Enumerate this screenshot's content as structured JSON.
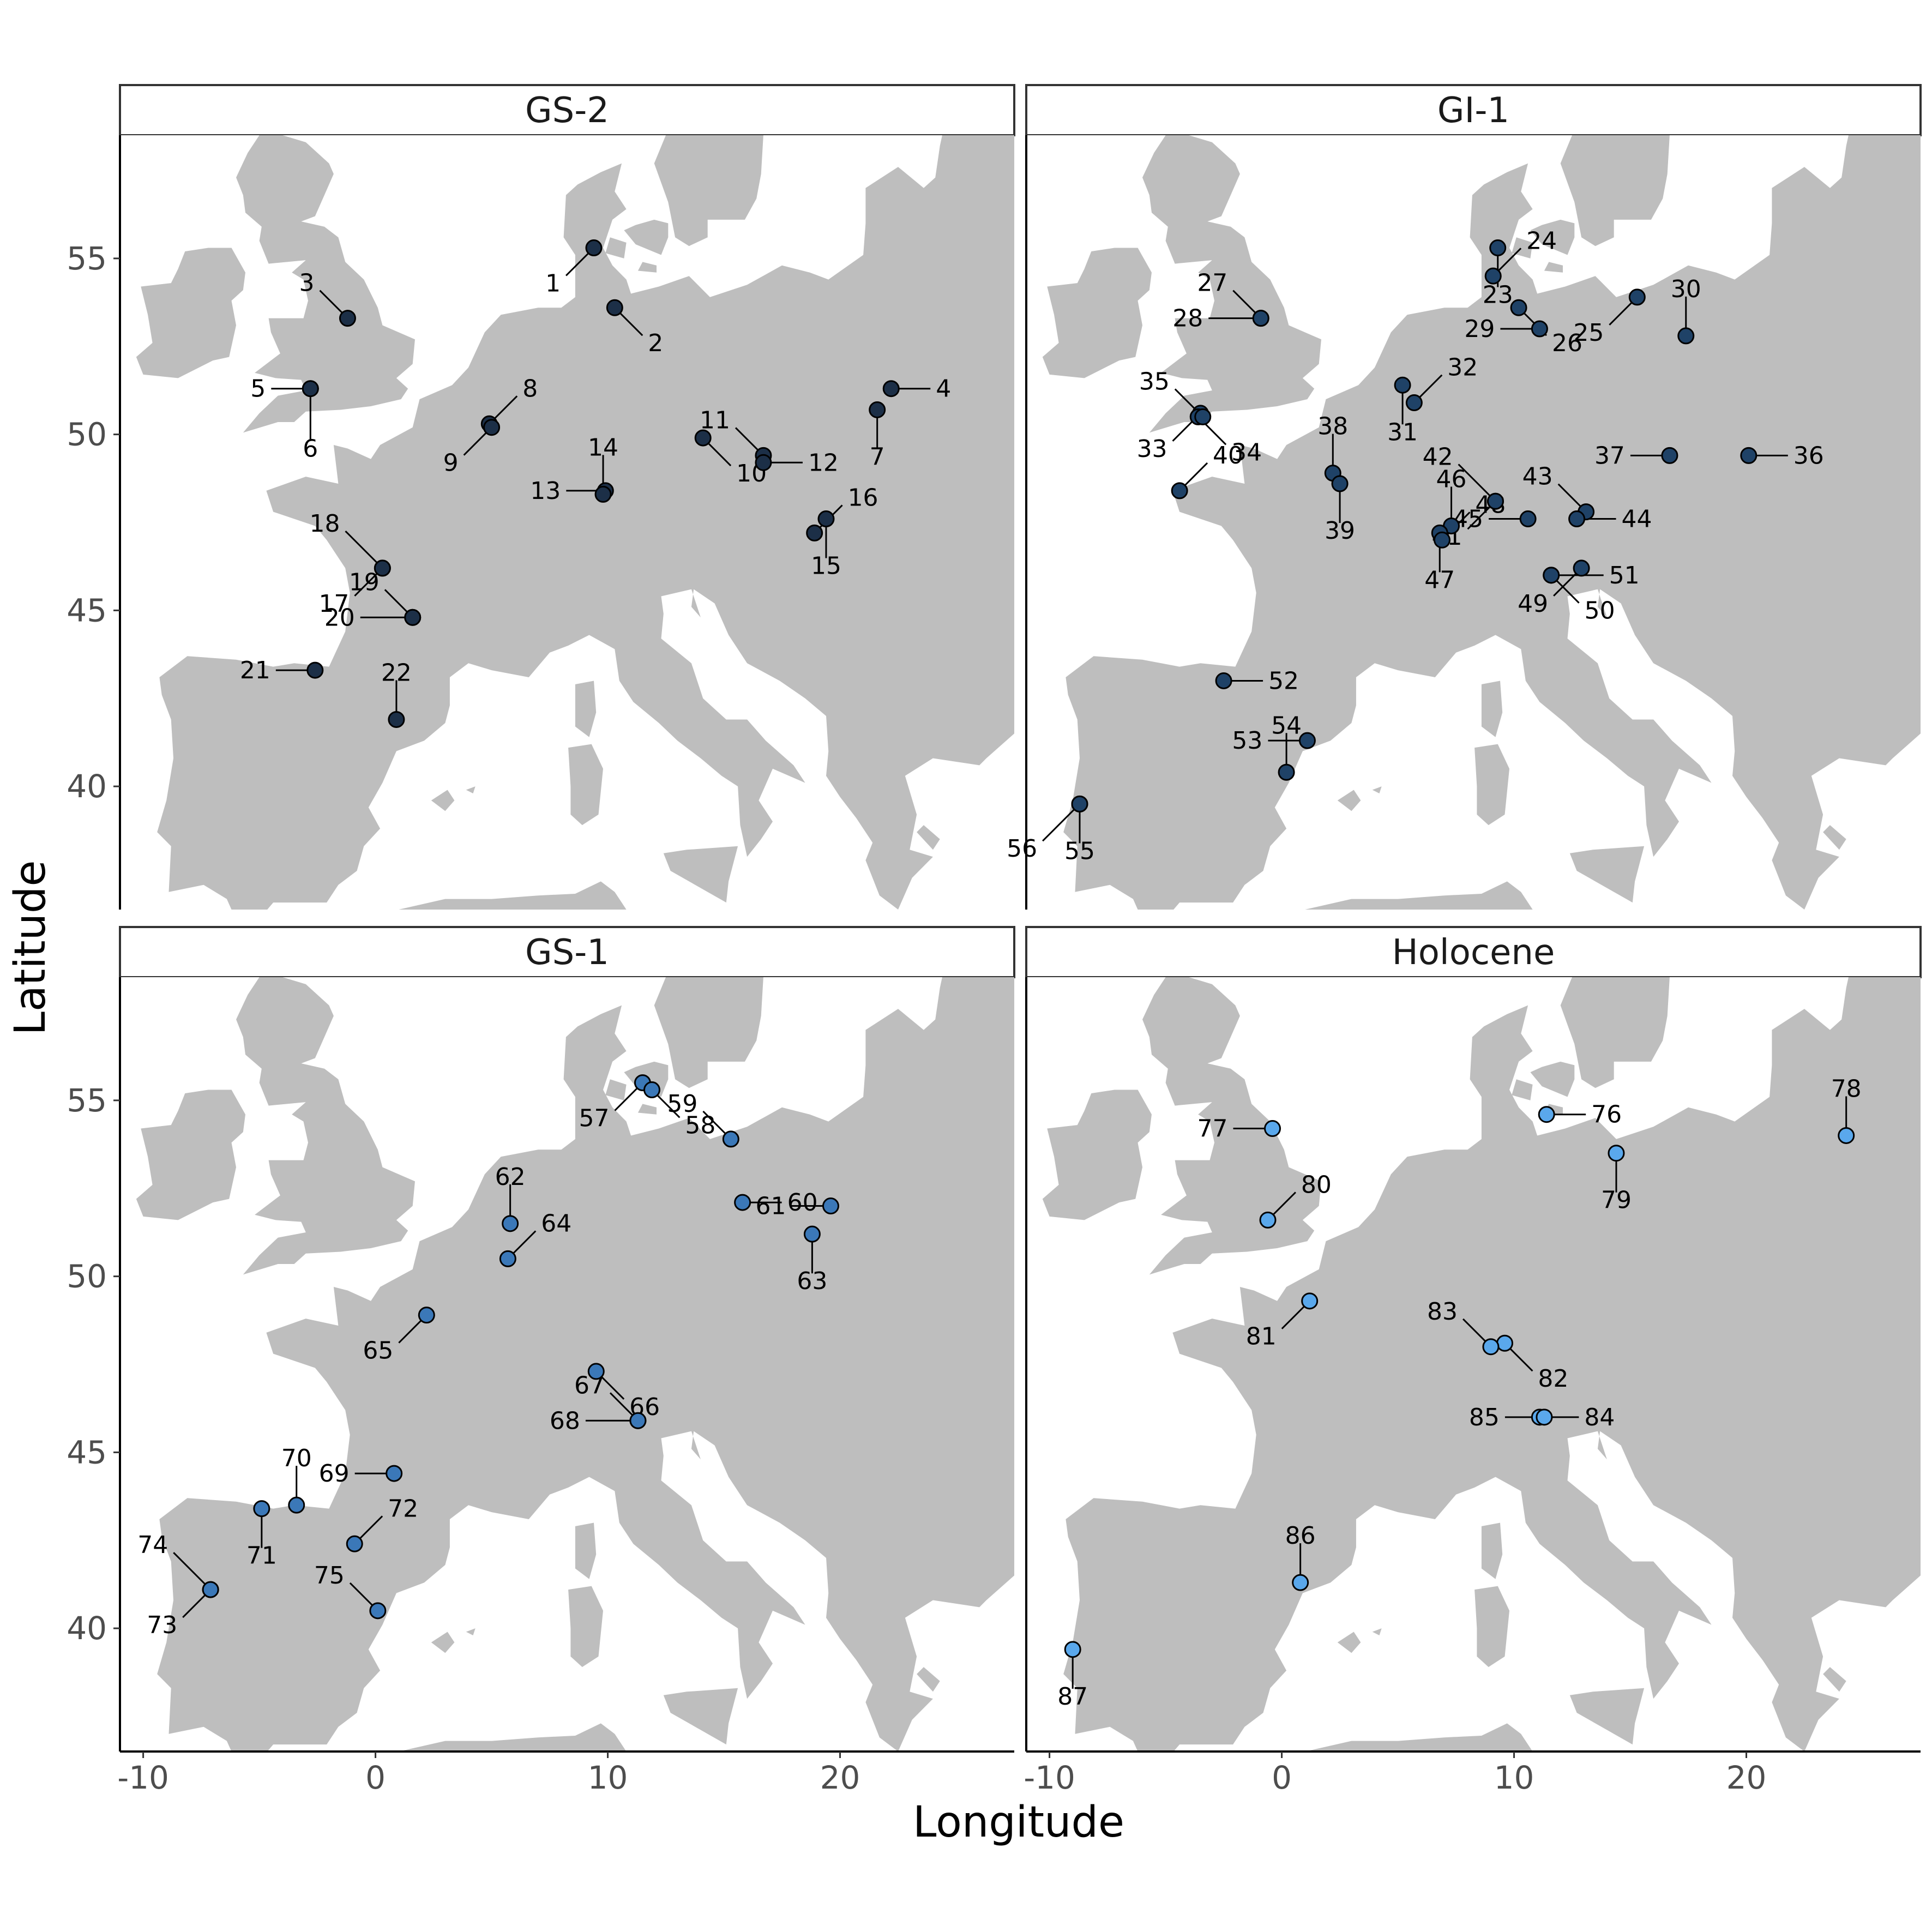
{
  "chart_data": {
    "type": "map",
    "xlabel": "Longitude",
    "ylabel": "Latitude",
    "xlim": [
      -11,
      27.5
    ],
    "ylim": [
      36.5,
      58.5
    ],
    "x_ticks": [
      -10,
      0,
      10,
      20
    ],
    "y_ticks": [
      40,
      45,
      50,
      55
    ],
    "x_tick_labels": [
      "-10",
      "0",
      "10",
      "20"
    ],
    "y_tick_labels": [
      "40",
      "45",
      "50",
      "55"
    ],
    "grid": false,
    "land_color": "#bebebe",
    "sea_color": "#ffffff",
    "panels": [
      {
        "title": "GS-2",
        "point_color": "#1c2f47",
        "sites": [
          {
            "id": "1",
            "lon": 9.4,
            "lat": 55.3
          },
          {
            "id": "2",
            "lon": 10.3,
            "lat": 53.6
          },
          {
            "id": "3",
            "lon": -1.2,
            "lat": 53.3
          },
          {
            "id": "4",
            "lon": 22.2,
            "lat": 51.3
          },
          {
            "id": "5",
            "lon": -2.8,
            "lat": 51.3
          },
          {
            "id": "6",
            "lon": -2.8,
            "lat": 51.3
          },
          {
            "id": "7",
            "lon": 21.6,
            "lat": 50.7
          },
          {
            "id": "8",
            "lon": 4.9,
            "lat": 50.3
          },
          {
            "id": "9",
            "lon": 5.0,
            "lat": 50.2
          },
          {
            "id": "10",
            "lon": 14.1,
            "lat": 49.9
          },
          {
            "id": "11",
            "lon": 16.7,
            "lat": 49.4
          },
          {
            "id": "12",
            "lon": 16.7,
            "lat": 49.2
          },
          {
            "id": "13",
            "lon": 9.9,
            "lat": 48.4
          },
          {
            "id": "14",
            "lon": 9.8,
            "lat": 48.3
          },
          {
            "id": "15",
            "lon": 19.4,
            "lat": 47.6
          },
          {
            "id": "16",
            "lon": 18.9,
            "lat": 47.2
          },
          {
            "id": "17",
            "lon": 0.3,
            "lat": 46.2
          },
          {
            "id": "18",
            "lon": 0.3,
            "lat": 46.2
          },
          {
            "id": "19",
            "lon": 1.6,
            "lat": 44.8
          },
          {
            "id": "20",
            "lon": 1.6,
            "lat": 44.8
          },
          {
            "id": "21",
            "lon": -2.6,
            "lat": 43.3
          },
          {
            "id": "22",
            "lon": 0.9,
            "lat": 41.9
          }
        ]
      },
      {
        "title": "GI-1",
        "point_color": "#1f4267",
        "sites": [
          {
            "id": "23",
            "lon": 9.3,
            "lat": 55.3
          },
          {
            "id": "24",
            "lon": 9.1,
            "lat": 54.5
          },
          {
            "id": "25",
            "lon": 15.3,
            "lat": 53.9
          },
          {
            "id": "26",
            "lon": 10.2,
            "lat": 53.6
          },
          {
            "id": "27",
            "lon": -0.9,
            "lat": 53.3
          },
          {
            "id": "28",
            "lon": -0.9,
            "lat": 53.3
          },
          {
            "id": "29",
            "lon": 11.1,
            "lat": 53.0
          },
          {
            "id": "30",
            "lon": 17.4,
            "lat": 52.8
          },
          {
            "id": "31",
            "lon": 5.2,
            "lat": 51.4
          },
          {
            "id": "32",
            "lon": 5.7,
            "lat": 50.9
          },
          {
            "id": "33",
            "lon": -3.5,
            "lat": 50.6
          },
          {
            "id": "34",
            "lon": -3.6,
            "lat": 50.5
          },
          {
            "id": "35",
            "lon": -3.4,
            "lat": 50.5
          },
          {
            "id": "36",
            "lon": 20.1,
            "lat": 49.4
          },
          {
            "id": "37",
            "lon": 16.7,
            "lat": 49.4
          },
          {
            "id": "38",
            "lon": 2.2,
            "lat": 48.9
          },
          {
            "id": "39",
            "lon": 2.5,
            "lat": 48.6
          },
          {
            "id": "40",
            "lon": -4.4,
            "lat": 48.4
          },
          {
            "id": "41",
            "lon": 9.2,
            "lat": 48.1
          },
          {
            "id": "42",
            "lon": 9.2,
            "lat": 48.1
          },
          {
            "id": "43",
            "lon": 13.1,
            "lat": 47.8
          },
          {
            "id": "44",
            "lon": 12.7,
            "lat": 47.6
          },
          {
            "id": "45",
            "lon": 10.6,
            "lat": 47.6
          },
          {
            "id": "46",
            "lon": 7.3,
            "lat": 47.4
          },
          {
            "id": "47",
            "lon": 6.8,
            "lat": 47.2
          },
          {
            "id": "48",
            "lon": 6.9,
            "lat": 47.0
          },
          {
            "id": "49",
            "lon": 12.9,
            "lat": 46.2
          },
          {
            "id": "50",
            "lon": 11.6,
            "lat": 46.0
          },
          {
            "id": "51",
            "lon": 11.6,
            "lat": 46.0
          },
          {
            "id": "52",
            "lon": -2.5,
            "lat": 43.0
          },
          {
            "id": "53",
            "lon": 1.1,
            "lat": 41.3
          },
          {
            "id": "54",
            "lon": 0.2,
            "lat": 40.4
          },
          {
            "id": "55",
            "lon": -8.7,
            "lat": 39.5
          },
          {
            "id": "56",
            "lon": -8.7,
            "lat": 39.5
          }
        ]
      },
      {
        "title": "GS-1",
        "point_color": "#3b78b8",
        "sites": [
          {
            "id": "57",
            "lon": 11.5,
            "lat": 55.5
          },
          {
            "id": "58",
            "lon": 11.9,
            "lat": 55.3
          },
          {
            "id": "59",
            "lon": 15.3,
            "lat": 53.9
          },
          {
            "id": "60",
            "lon": 15.8,
            "lat": 52.1
          },
          {
            "id": "61",
            "lon": 19.6,
            "lat": 52.0
          },
          {
            "id": "62",
            "lon": 5.8,
            "lat": 51.5
          },
          {
            "id": "63",
            "lon": 18.8,
            "lat": 51.2
          },
          {
            "id": "64",
            "lon": 5.7,
            "lat": 50.5
          },
          {
            "id": "65",
            "lon": 2.2,
            "lat": 48.9
          },
          {
            "id": "66",
            "lon": 9.5,
            "lat": 47.3
          },
          {
            "id": "67",
            "lon": 11.3,
            "lat": 45.9
          },
          {
            "id": "68",
            "lon": 11.3,
            "lat": 45.9
          },
          {
            "id": "69",
            "lon": 0.8,
            "lat": 44.4
          },
          {
            "id": "70",
            "lon": -3.4,
            "lat": 43.5
          },
          {
            "id": "71",
            "lon": -4.9,
            "lat": 43.4
          },
          {
            "id": "72",
            "lon": -0.9,
            "lat": 42.4
          },
          {
            "id": "73",
            "lon": -7.1,
            "lat": 41.1
          },
          {
            "id": "74",
            "lon": -7.1,
            "lat": 41.1
          },
          {
            "id": "75",
            "lon": 0.1,
            "lat": 40.5
          }
        ]
      },
      {
        "title": "Holocene",
        "point_color": "#5aa8ec",
        "sites": [
          {
            "id": "76",
            "lon": 11.4,
            "lat": 54.6
          },
          {
            "id": "77",
            "lon": -0.4,
            "lat": 54.2
          },
          {
            "id": "78",
            "lon": 24.3,
            "lat": 54.0
          },
          {
            "id": "79",
            "lon": 14.4,
            "lat": 53.5
          },
          {
            "id": "80",
            "lon": -0.6,
            "lat": 51.6
          },
          {
            "id": "81",
            "lon": 1.2,
            "lat": 49.3
          },
          {
            "id": "82",
            "lon": 9.6,
            "lat": 48.1
          },
          {
            "id": "83",
            "lon": 9.0,
            "lat": 48.0
          },
          {
            "id": "84",
            "lon": 11.1,
            "lat": 46.0
          },
          {
            "id": "85",
            "lon": 11.3,
            "lat": 46.0
          },
          {
            "id": "86",
            "lon": 0.8,
            "lat": 41.3
          },
          {
            "id": "87",
            "lon": -9.0,
            "lat": 39.4
          }
        ]
      }
    ]
  }
}
